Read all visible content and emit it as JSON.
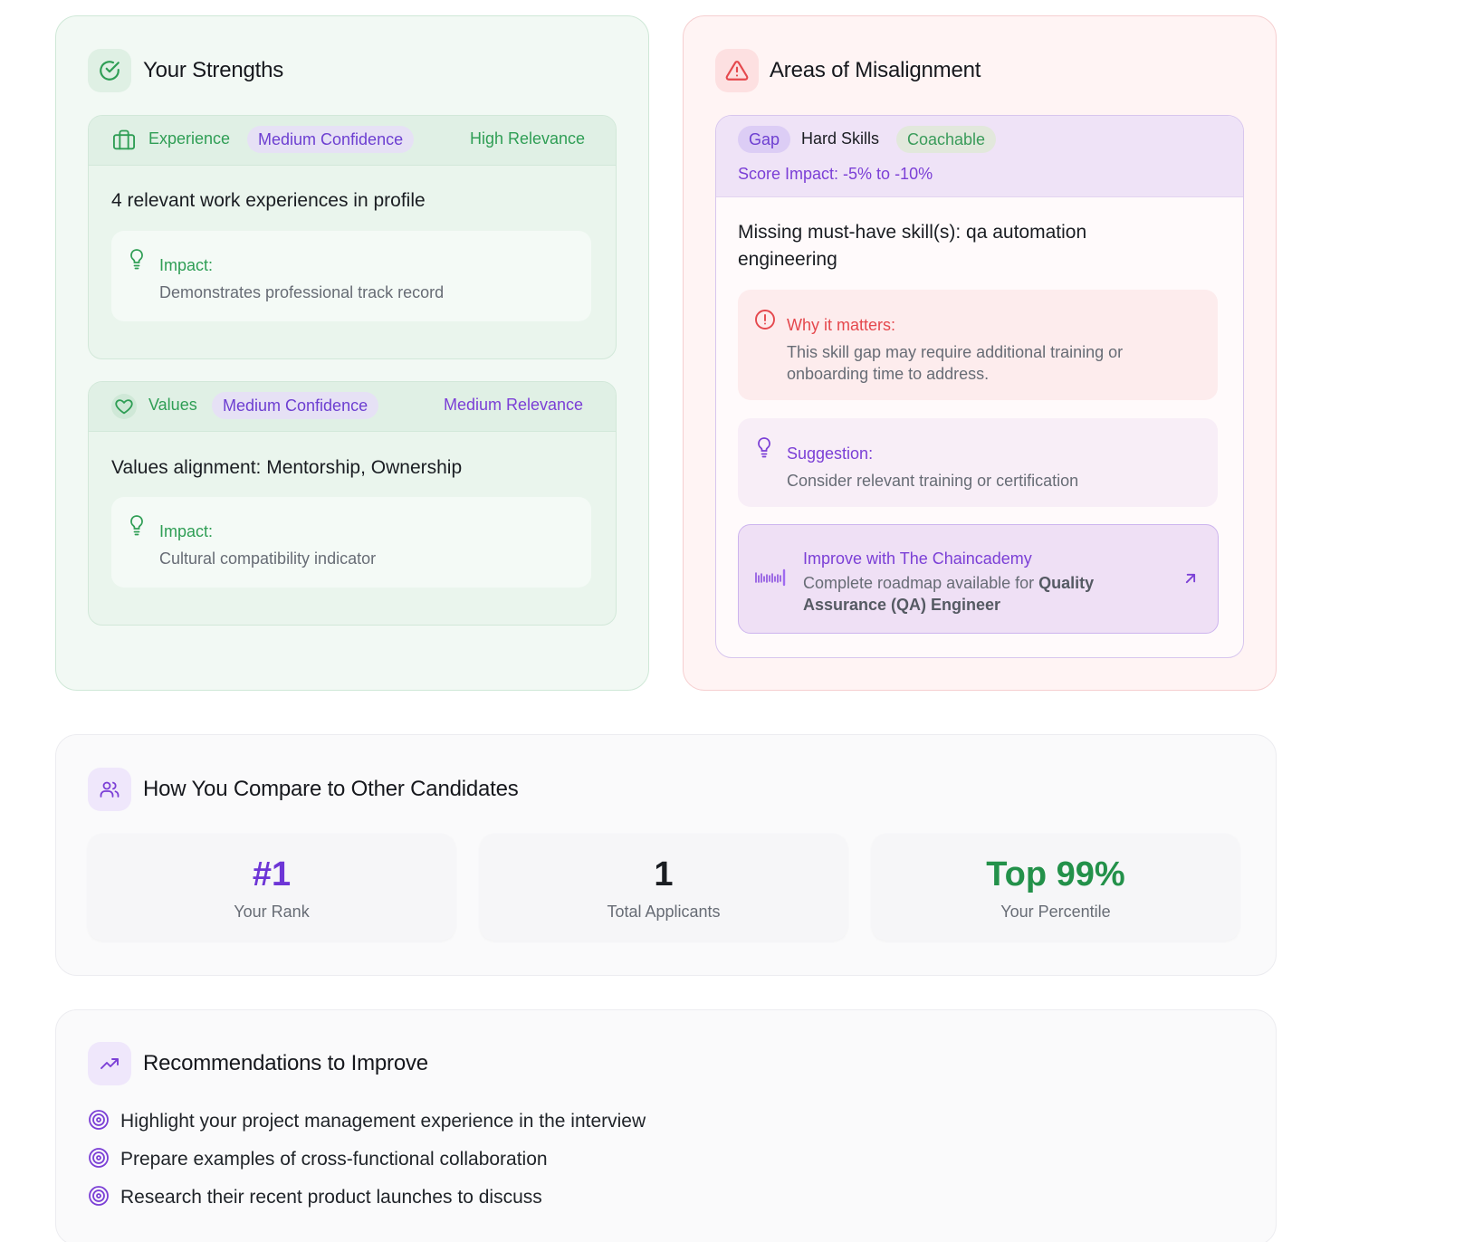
{
  "strengths": {
    "title": "Your Strengths",
    "cards": [
      {
        "category": "Experience",
        "confidence": "Medium Confidence",
        "relevance": "High Relevance",
        "text": "4 relevant work experiences in profile",
        "impact_label": "Impact:",
        "impact_desc": "Demonstrates professional track record"
      },
      {
        "category": "Values",
        "confidence": "Medium Confidence",
        "relevance": "Medium Relevance",
        "text": "Values alignment: Mentorship, Ownership",
        "impact_label": "Impact:",
        "impact_desc": "Cultural compatibility indicator"
      }
    ]
  },
  "misalignment": {
    "title": "Areas of Misalignment",
    "gap_badge": "Gap",
    "category": "Hard Skills",
    "coachable": "Coachable",
    "score_impact": "Score Impact: -5% to -10%",
    "text_line1": "Missing must-have skill(s): qa automation",
    "text_line2": "engineering",
    "why_label": "Why it matters:",
    "why_line1": "This skill gap may require additional training or",
    "why_line2": "onboarding time to address.",
    "suggestion_label": "Suggestion:",
    "suggestion_text": "Consider relevant training or certification",
    "improve_title": "Improve with The Chaincademy",
    "improve_prefix": "Complete roadmap available for ",
    "improve_role_1": "Quality",
    "improve_role_2": "Assurance (QA) Engineer"
  },
  "compare": {
    "title": "How You Compare to Other Candidates",
    "stats": [
      {
        "value": "#1",
        "label": "Your Rank",
        "color": "#6d35d6"
      },
      {
        "value": "1",
        "label": "Total Applicants",
        "color": "#1a1d22"
      },
      {
        "value": "Top 99%",
        "label": "Your Percentile",
        "color": "#23914a"
      }
    ]
  },
  "recommendations": {
    "title": "Recommendations to Improve",
    "items": [
      "Highlight your project management experience in the interview",
      "Prepare examples of cross-functional collaboration",
      "Research their recent product launches to discuss"
    ]
  },
  "colors": {
    "green_accent": "#2f9e55",
    "purple_accent": "#7b3fd6",
    "red_accent": "#e5484d"
  },
  "icons": [
    "check-circle-icon",
    "briefcase-icon",
    "lightbulb-icon",
    "heart-icon",
    "alert-triangle-icon",
    "alert-circle-icon",
    "external-link-icon",
    "users-icon",
    "trending-up-icon",
    "target-icon"
  ]
}
